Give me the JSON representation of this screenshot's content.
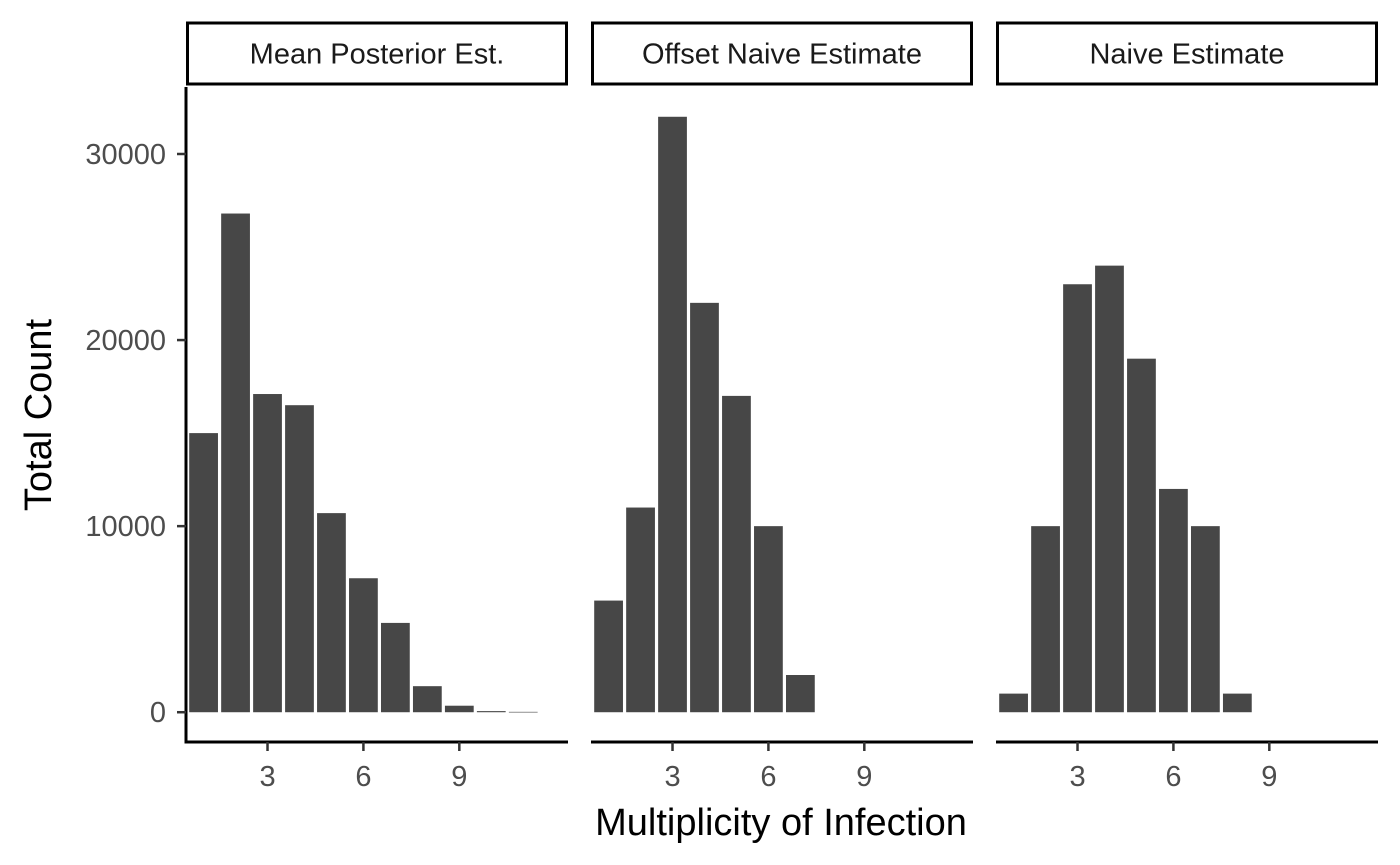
{
  "chart_data": {
    "type": "bar",
    "xlabel": "Multiplicity of Infection",
    "ylabel": "Total Count",
    "xlim": [
      0.45,
      12.4
    ],
    "ylim": [
      -1600,
      33600
    ],
    "x_ticks": [
      3,
      6,
      9
    ],
    "y_ticks": [
      0,
      10000,
      20000,
      30000
    ],
    "bar_color": "#474747",
    "grid": false,
    "legend": "none",
    "panels": [
      {
        "title": "Mean Posterior Est.",
        "x": [
          1,
          2,
          3,
          4,
          5,
          6,
          7,
          8,
          9,
          10,
          11
        ],
        "values": [
          15000,
          26800,
          17100,
          16500,
          10700,
          7200,
          4800,
          1400,
          350,
          60,
          20
        ]
      },
      {
        "title": "Offset Naive Estimate",
        "x": [
          1,
          2,
          3,
          4,
          5,
          6,
          7
        ],
        "values": [
          6000,
          11000,
          32000,
          22000,
          17000,
          10000,
          2000
        ]
      },
      {
        "title": "Naive Estimate",
        "x": [
          1,
          2,
          3,
          4,
          5,
          6,
          7,
          8
        ],
        "values": [
          1000,
          10000,
          23000,
          24000,
          19000,
          12000,
          10000,
          1000
        ]
      }
    ]
  }
}
